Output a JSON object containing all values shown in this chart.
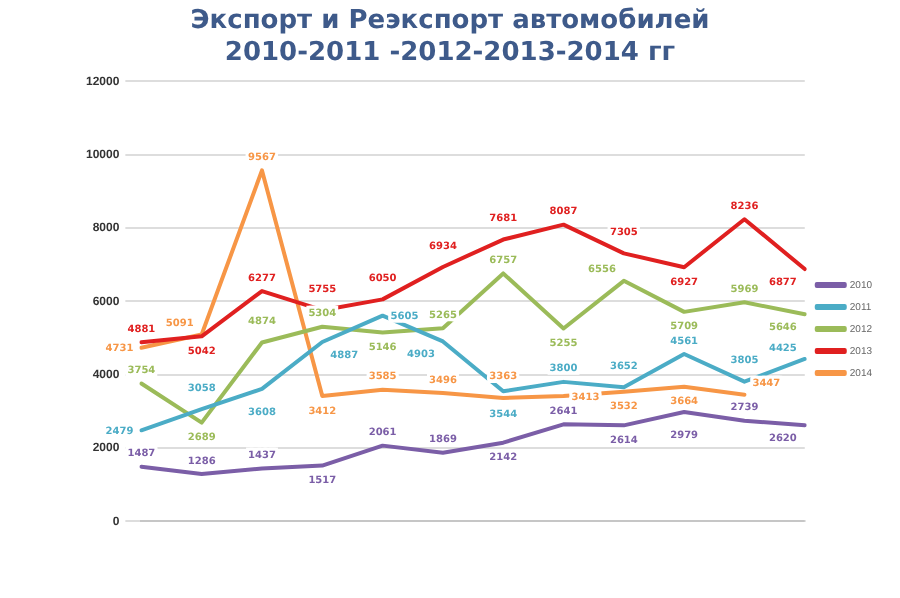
{
  "chart_data": {
    "type": "line",
    "title": "Экспорт и Реэкспорт автомобилей 2010-2011 -2012-2013-2014 гг",
    "categories": [
      null,
      null,
      null,
      null,
      null,
      null,
      null,
      null,
      null,
      null,
      null,
      null
    ],
    "series": [
      {
        "name": "2010",
        "color": "#7b5ea7",
        "values": [
          1487,
          1286,
          1437,
          1517,
          2061,
          1869,
          2142,
          2641,
          2614,
          2979,
          2739,
          2620
        ]
      },
      {
        "name": "2011",
        "color": "#4bacc6",
        "values": [
          2479,
          3058,
          3608,
          4887,
          5605,
          4903,
          3544,
          3800,
          3652,
          4561,
          3805,
          4425
        ]
      },
      {
        "name": "2012",
        "color": "#9bbb59",
        "values": [
          3754,
          2689,
          4874,
          5304,
          5146,
          5265,
          6757,
          5255,
          6556,
          5709,
          5969,
          5646
        ]
      },
      {
        "name": "2013",
        "color": "#e02020",
        "values": [
          4881,
          5042,
          6277,
          5755,
          6050,
          6934,
          7681,
          8087,
          7305,
          6927,
          8236,
          6877
        ]
      },
      {
        "name": "2014",
        "color": "#f79646",
        "values": [
          4731,
          5091,
          9567,
          3412,
          3585,
          3496,
          3363,
          3413,
          3532,
          3664,
          3447,
          null
        ]
      }
    ],
    "ylim": [
      0,
      12000
    ],
    "yticks": [
      0,
      2000,
      4000,
      6000,
      8000,
      10000,
      12000
    ],
    "grid": "y",
    "legend": "right",
    "data_labels": true,
    "marker": "none",
    "line_style": "solid"
  }
}
